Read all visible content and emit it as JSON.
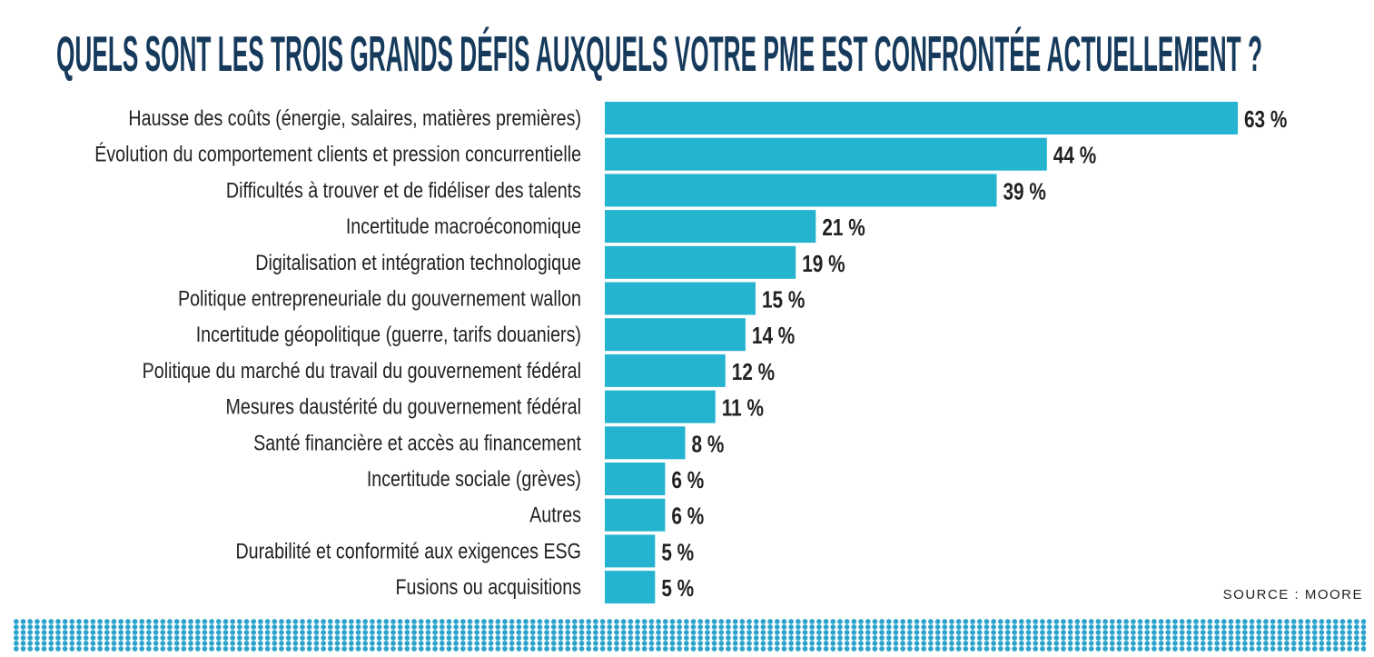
{
  "title": "QUELS SONT LES TROIS GRANDS DÉFIS AUXQUELS VOTRE PME EST CONFRONTÉE ACTUELLEMENT ?",
  "source": "SOURCE : MOORE",
  "colors": {
    "bar": "#24b4d0",
    "title": "#163a5c",
    "text": "#222222",
    "dots": "#2aa3cc"
  },
  "chart_data": {
    "type": "bar",
    "orientation": "horizontal",
    "title": "QUELS SONT LES TROIS GRANDS DÉFIS AUXQUELS VOTRE PME EST CONFRONTÉE ACTUELLEMENT ?",
    "unit": "%",
    "categories": [
      "Hausse des coûts (énergie, salaires, matières premières)",
      "Évolution du comportement clients et pression concurrentielle",
      "Difficultés à trouver et de fidéliser des talents",
      "Incertitude macroéconomique",
      "Digitalisation et intégration technologique",
      "Politique entrepreneuriale du gouvernement wallon",
      "Incertitude géopolitique (guerre, tarifs douaniers)",
      "Politique du marché du travail du gouvernement fédéral",
      "Mesures daustérité du gouvernement fédéral",
      "Santé financière et accès au financement",
      "Incertitude sociale (grèves)",
      "Autres",
      "Durabilité et conformité aux exigences ESG",
      "Fusions ou acquisitions"
    ],
    "values": [
      63,
      44,
      39,
      21,
      19,
      15,
      14,
      12,
      11,
      8,
      6,
      6,
      5,
      5
    ],
    "labels": [
      "63 %",
      "44 %",
      "39 %",
      "21 %",
      "19 %",
      "15 %",
      "14 %",
      "12 %",
      "11 %",
      "8 %",
      "6 %",
      "6 %",
      "5 %",
      "5 %"
    ],
    "grid": false,
    "legend": "none"
  }
}
